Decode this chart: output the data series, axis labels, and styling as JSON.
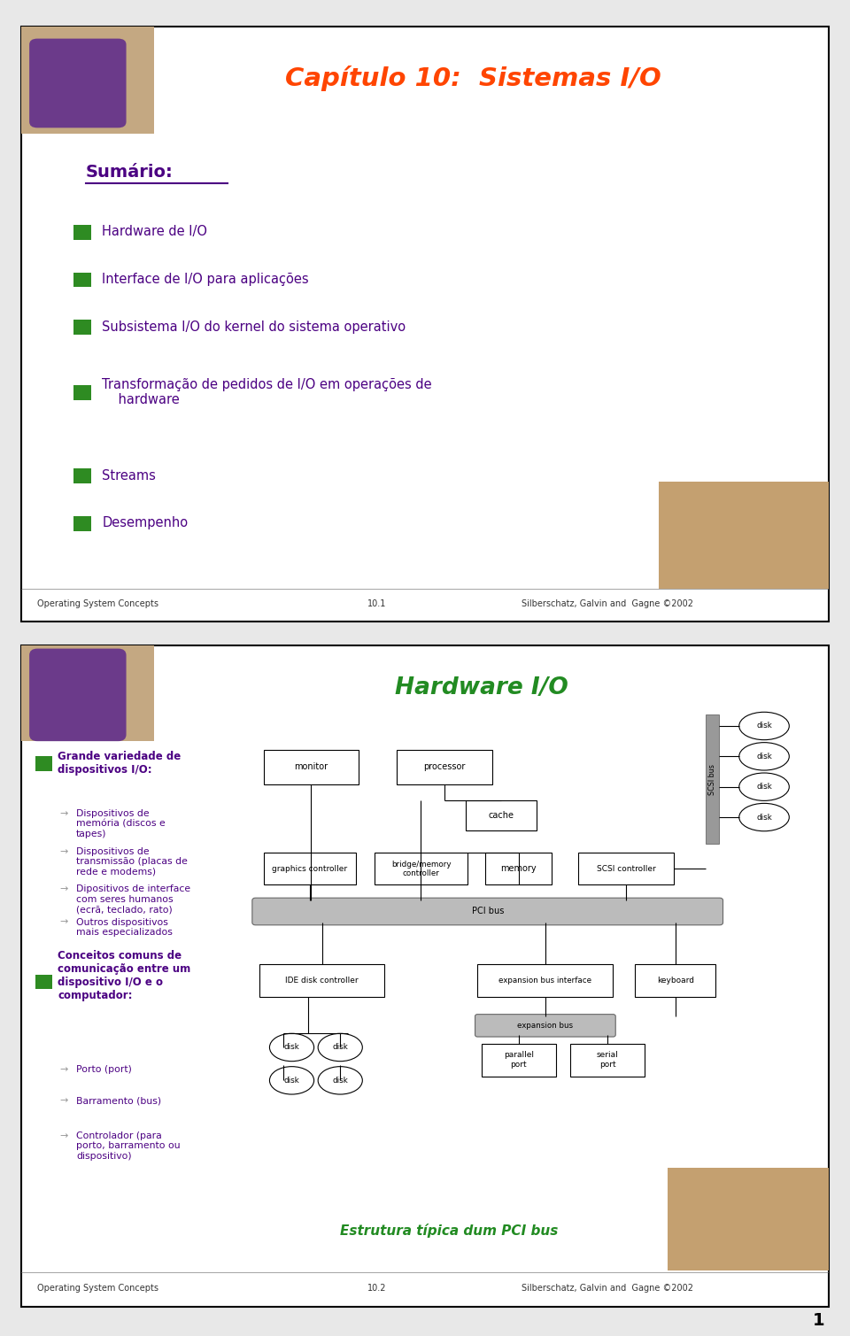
{
  "slide1": {
    "title": "Capítulo 10:  Sistemas I/O",
    "title_color": "#FF4500",
    "bg_color": "#FFFFFF",
    "border_color": "#000000",
    "summary_title": "Sumário:",
    "summary_color": "#4B0082",
    "bullet_color": "#2E8B22",
    "bullet_text_color": "#4B0082",
    "bullets": [
      "Hardware de I/O",
      "Interface de I/O para aplicações",
      "Subsistema I/O do kernel do sistema operativo",
      "Transformação de pedidos de I/O em operações de\n    hardware",
      "Streams",
      "Desempenho"
    ],
    "footer_left": "Operating System Concepts",
    "footer_mid": "10.1",
    "footer_right": "Silberschatz, Galvin and  Gagne ©2002"
  },
  "slide2": {
    "title": "Hardware I/O",
    "title_color": "#228B22",
    "bg_color": "#FFFFFF",
    "border_color": "#000000",
    "bullet_color": "#2E8B22",
    "bullet_text_color": "#4B0082",
    "sub_bullet_color": "#4B0082",
    "footer_left": "Operating System Concepts",
    "footer_mid": "10.2",
    "footer_right": "Silberschatz, Galvin and  Gagne ©2002",
    "diagram_caption": "Estrutura típica dum PCI bus",
    "diagram_caption_color": "#228B22",
    "main_bullet1_text": "Grande variedade de\ndispositivos I/O:",
    "main_bullet2_text": "Conceitos comuns de\ncomunicação entre um\ndispositivo I/O e o\ncomputador:",
    "sub1_texts": [
      "Dispositivos de\nmemória (discos e\ntapes)",
      "Dispositivos de\ntransmissão (placas de\nrede e modems)",
      "Dipositivos de interface\ncom seres humanos\n(ecrã, teclado, rato)",
      "Outros dispositivos\nmais especializados"
    ],
    "sub2_texts": [
      "Porto (port)",
      "Barramento (bus)",
      "Controlador (para\nporto, barramento ou\ndispositivo)"
    ]
  }
}
